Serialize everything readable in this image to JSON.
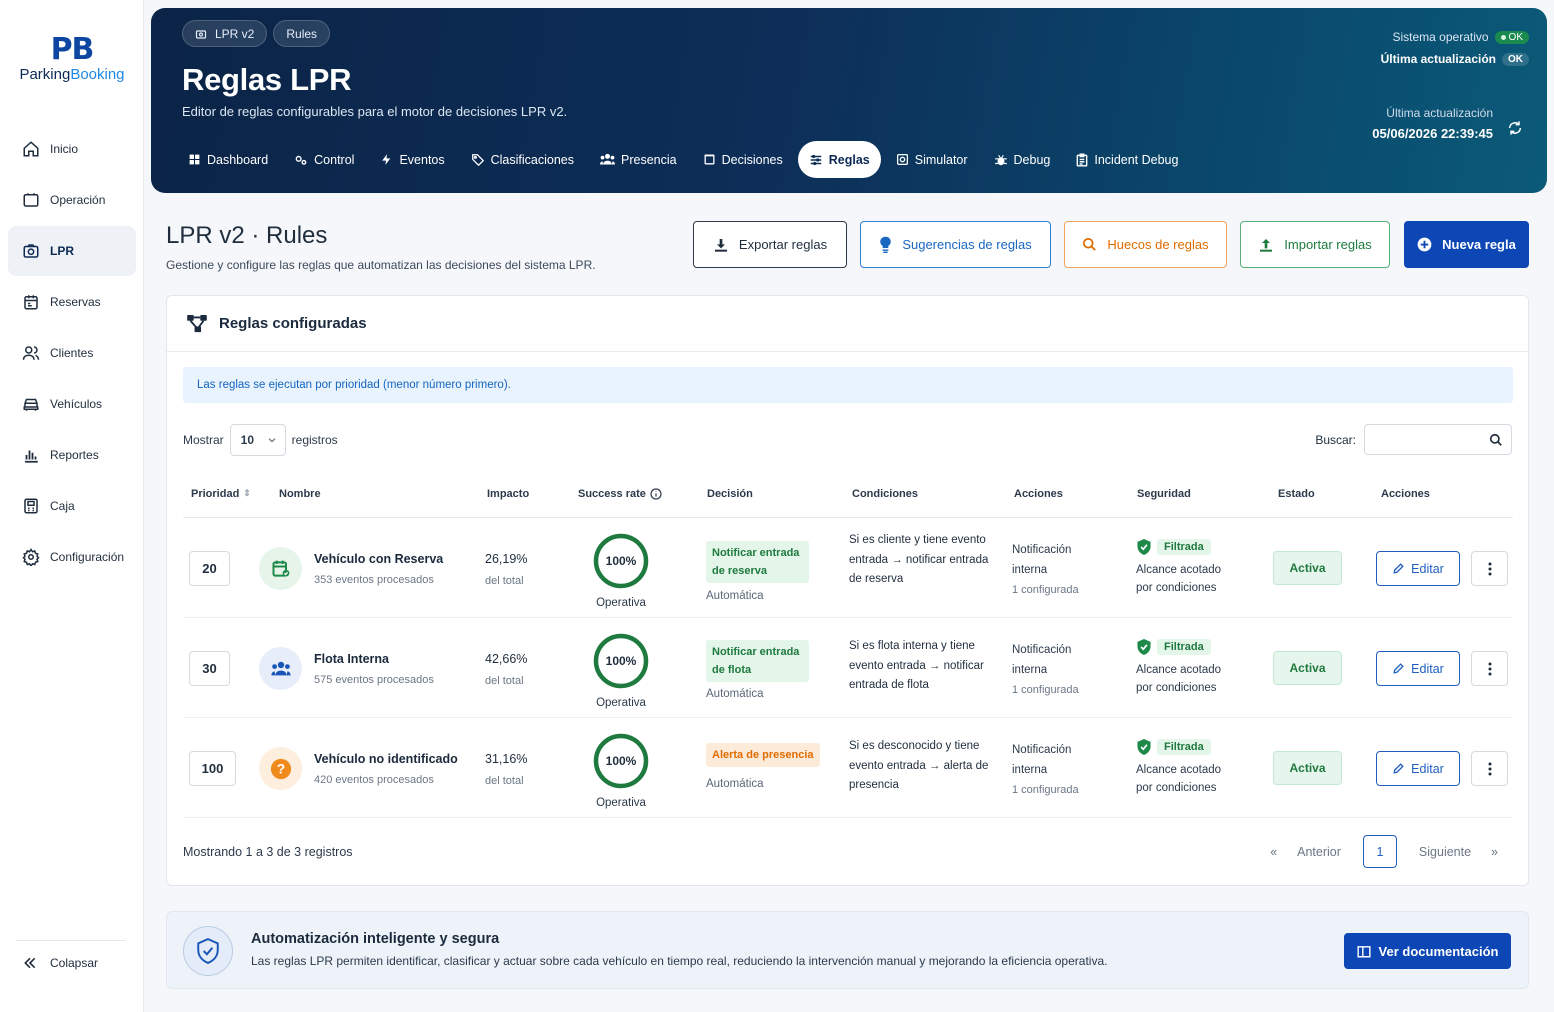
{
  "brand": {
    "mark": "PB",
    "name_a": "Parking",
    "name_b": "Booking"
  },
  "sidebar": {
    "items": [
      {
        "label": "Inicio",
        "icon": "home-icon"
      },
      {
        "label": "Operación",
        "icon": "operation-icon"
      },
      {
        "label": "LPR",
        "icon": "camera-icon"
      },
      {
        "label": "Reservas",
        "icon": "calendar-icon"
      },
      {
        "label": "Clientes",
        "icon": "users-icon"
      },
      {
        "label": "Vehículos",
        "icon": "car-icon"
      },
      {
        "label": "Reportes",
        "icon": "chart-icon"
      },
      {
        "label": "Caja",
        "icon": "register-icon"
      },
      {
        "label": "Configuración",
        "icon": "gear-icon"
      }
    ],
    "active": "LPR",
    "collapse": "Colapsar"
  },
  "hero": {
    "crumbs": [
      "LPR v2",
      "Rules"
    ],
    "title": "Reglas LPR",
    "subtitle": "Editor de reglas configurables para el motor de decisiones LPR v2.",
    "system_label": "Sistema operativo",
    "system_status": "OK",
    "last_update_small": "Última actualización",
    "last_update_badge": "OK",
    "last_update_label": "Última actualización",
    "last_update_value": "05/06/2026 22:39:45",
    "tabs": [
      {
        "label": "Dashboard",
        "icon": "grid-icon"
      },
      {
        "label": "Control",
        "icon": "gears-icon"
      },
      {
        "label": "Eventos",
        "icon": "bolt-icon"
      },
      {
        "label": "Clasificaciones",
        "icon": "tag-icon"
      },
      {
        "label": "Presencia",
        "icon": "people-icon"
      },
      {
        "label": "Decisiones",
        "icon": "box-icon"
      },
      {
        "label": "Reglas",
        "icon": "sliders-icon"
      },
      {
        "label": "Simulator",
        "icon": "simulator-icon"
      },
      {
        "label": "Debug",
        "icon": "bug-icon"
      },
      {
        "label": "Incident Debug",
        "icon": "clipboard-icon"
      }
    ],
    "active_tab": "Reglas"
  },
  "page": {
    "title": "LPR v2 · Rules",
    "subtitle": "Gestione y configure las reglas que automatizan las decisiones del sistema LPR."
  },
  "actions": {
    "export": "Exportar reglas",
    "suggest": "Sugerencias de reglas",
    "gaps": "Huecos de reglas",
    "import": "Importar reglas",
    "new": "Nueva regla"
  },
  "colors": {
    "primary": "#0d47b6",
    "success": "#1e7a3e",
    "warning": "#e06c00",
    "hero": "#0b2447"
  },
  "card": {
    "title": "Reglas configuradas",
    "info": "Las reglas se ejecutan por prioridad (menor número primero).",
    "show_label": "Mostrar",
    "page_size": "10",
    "records_label": "registros",
    "search_label": "Buscar:",
    "search_value": "",
    "columns": [
      "Prioridad",
      "Nombre",
      "Impacto",
      "Success rate",
      "Decisión",
      "Condiciones",
      "Acciones",
      "Seguridad",
      "Estado",
      "Acciones"
    ],
    "rows": [
      {
        "priority": "20",
        "name": "Vehículo con Reserva",
        "events": "353 eventos procesados",
        "impact": "26,19%",
        "impact_sub": "del total",
        "success": "100%",
        "success_value": 1.0,
        "success_label": "Operativa",
        "decision": "Notificar entrada de reserva",
        "decision_type": "green",
        "decision_mode": "Automática",
        "conditions": "Si es cliente y tiene evento entrada → notificar entrada de reserva",
        "action": "Notificación interna",
        "action_sub": "1 configurada",
        "security": "Filtrada",
        "security_text": "Alcance acotado por condiciones",
        "status": "Activa",
        "edit": "Editar",
        "icon": "calendar-check-icon"
      },
      {
        "priority": "30",
        "name": "Flota Interna",
        "events": "575 eventos procesados",
        "impact": "42,66%",
        "impact_sub": "del total",
        "success": "100%",
        "success_value": 1.0,
        "success_label": "Operativa",
        "decision": "Notificar entrada de flota",
        "decision_type": "green",
        "decision_mode": "Automática",
        "conditions": "Si es flota interna y tiene evento entrada → notificar entrada de flota",
        "action": "Notificación interna",
        "action_sub": "1 configurada",
        "security": "Filtrada",
        "security_text": "Alcance acotado por condiciones",
        "status": "Activa",
        "edit": "Editar",
        "icon": "fleet-icon"
      },
      {
        "priority": "100",
        "name": "Vehículo no identificado",
        "events": "420 eventos procesados",
        "impact": "31,16%",
        "impact_sub": "del total",
        "success": "100%",
        "success_value": 1.0,
        "success_label": "Operativa",
        "decision": "Alerta de presencia",
        "decision_type": "orange",
        "decision_mode": "Automática",
        "conditions": "Si es desconocido y tiene evento entrada → alerta de presencia",
        "action": "Notificación interna",
        "action_sub": "1 configurada",
        "security": "Filtrada",
        "security_text": "Alcance acotado por condiciones",
        "status": "Activa",
        "edit": "Editar",
        "icon": "question-icon"
      }
    ],
    "footer": "Mostrando 1 a 3 de 3 registros",
    "pager": {
      "first": "«",
      "prev": "Anterior",
      "current": "1",
      "next": "Siguiente",
      "last": "»"
    }
  },
  "banner": {
    "title": "Automatización inteligente y segura",
    "text": "Las reglas LPR permiten identificar, clasificar y actuar sobre cada vehículo en tiempo real, reduciendo la intervención manual y mejorando la eficiencia operativa.",
    "button": "Ver documentación"
  }
}
